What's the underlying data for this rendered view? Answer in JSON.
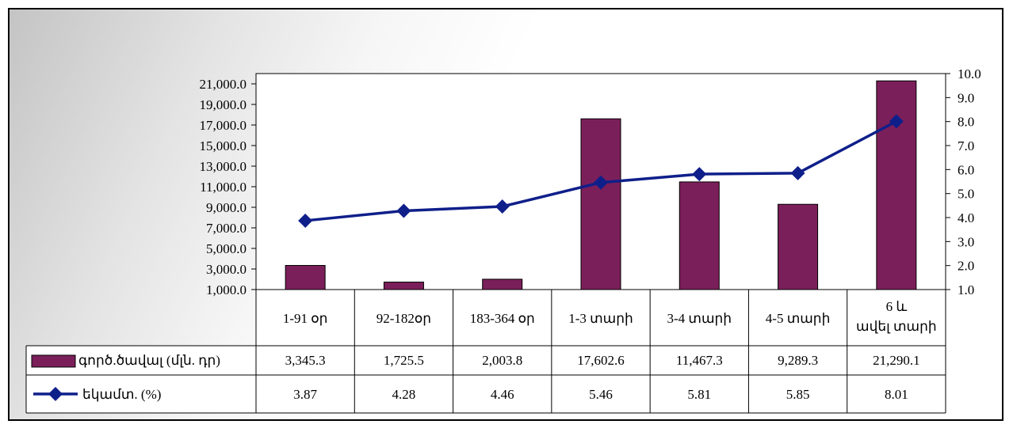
{
  "chart_data": {
    "type": "bar",
    "categories": [
      "1-91 օր",
      "92-182օր",
      "183-364 օր",
      "1-3 տարի",
      "3-4 տարի",
      "4-5 տարի",
      "6 և ավել տարի"
    ],
    "series": [
      {
        "name": "գործ.ծավալ (մլն. դր)",
        "type": "bar",
        "axis": "left",
        "color": "#7b1f5a",
        "values": [
          3345.3,
          1725.5,
          2003.8,
          17602.6,
          11467.3,
          9289.3,
          21290.1
        ],
        "labels": [
          "3,345.3",
          "1,725.5",
          "2,003.8",
          "17,602.6",
          "11,467.3",
          "9,289.3",
          "21,290.1"
        ]
      },
      {
        "name": "եկամտ. (%)",
        "type": "line",
        "axis": "right",
        "color": "#0f1f8a",
        "values": [
          3.87,
          4.28,
          4.46,
          5.46,
          5.81,
          5.85,
          8.01
        ],
        "labels": [
          "3.87",
          "4.28",
          "4.46",
          "5.46",
          "5.81",
          "5.85",
          "8.01"
        ]
      }
    ],
    "y_left": {
      "ylim": [
        1000,
        22000
      ],
      "ticks": [
        "21,000.0",
        "19,000.0",
        "17,000.0",
        "15,000.0",
        "13,000.0",
        "11,000.0",
        "9,000.0",
        "7,000.0",
        "5,000.0",
        "3,000.0",
        "1,000.0"
      ]
    },
    "y_right": {
      "ylim": [
        1,
        10
      ],
      "ticks": [
        "10.0",
        "9.0",
        "8.0",
        "7.0",
        "6.0",
        "5.0",
        "4.0",
        "3.0",
        "2.0",
        "1.0"
      ]
    },
    "grid": false,
    "legend": "data-table"
  }
}
